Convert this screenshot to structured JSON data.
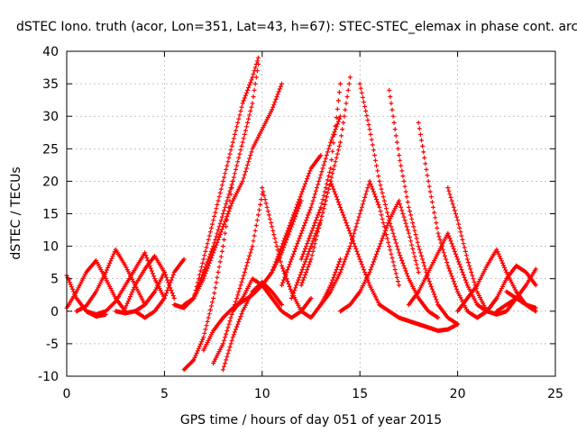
{
  "chart_data": {
    "type": "scatter",
    "title": "dSTEC Iono. truth (acor, Lon=351, Lat=43, h=67): STEC-STEC_elemax in phase cont. arc",
    "xlabel": "GPS time / hours of day 051 of year 2015",
    "ylabel": "dSTEC  / TECUs",
    "xlim": [
      0,
      25
    ],
    "ylim": [
      -10,
      40
    ],
    "xticks": [
      0,
      5,
      10,
      15,
      20,
      25
    ],
    "yticks": [
      -10,
      -5,
      0,
      5,
      10,
      15,
      20,
      25,
      30,
      35,
      40
    ],
    "grid": true,
    "legend": "none",
    "marker": "+",
    "color": "#ff0000",
    "series": [
      {
        "x": [
          0.0,
          0.5,
          1.0,
          1.5,
          2.0
        ],
        "y": [
          5.5,
          2,
          0,
          -0.8,
          -0.5
        ]
      },
      {
        "x": [
          0.0,
          0.5,
          1.0,
          1.5,
          2.0,
          2.5,
          3.0
        ],
        "y": [
          0.5,
          3,
          6,
          7.8,
          5,
          2,
          0
        ]
      },
      {
        "x": [
          0.5,
          1.0,
          1.5,
          2.0,
          2.5,
          3.0,
          3.5,
          4.0
        ],
        "y": [
          0,
          0.8,
          3,
          6,
          9.5,
          7,
          4,
          1
        ]
      },
      {
        "x": [
          1.0,
          1.5,
          2.0,
          2.5,
          3.0,
          3.5,
          4.0,
          4.5,
          5.0
        ],
        "y": [
          0,
          -0.5,
          0,
          1.5,
          4,
          6.5,
          9,
          5,
          2
        ]
      },
      {
        "x": [
          3.0,
          3.5,
          4.0,
          4.5,
          5.0,
          5.5
        ],
        "y": [
          0.5,
          4,
          6.5,
          8.5,
          6,
          2
        ]
      },
      {
        "x": [
          2.5,
          3.0,
          3.5,
          4.0,
          4.5,
          5.0
        ],
        "y": [
          0,
          -0.3,
          0,
          1,
          3,
          6
        ]
      },
      {
        "x": [
          3.5,
          4.0,
          4.5,
          5.0,
          5.5,
          6.0
        ],
        "y": [
          0,
          -1,
          0,
          2,
          6,
          8
        ]
      },
      {
        "x": [
          5.5,
          6.0,
          6.5,
          7.0,
          7.5,
          8.0,
          8.5,
          9.0,
          9.5,
          9.8
        ],
        "y": [
          1,
          0.5,
          2,
          8,
          14,
          20,
          26,
          32,
          36,
          39
        ]
      },
      {
        "x": [
          6.0,
          6.5,
          7.0,
          7.5,
          8.0,
          8.5,
          9.0,
          9.5,
          10.0,
          10.5,
          11.0
        ],
        "y": [
          1,
          2,
          5,
          9,
          13,
          17,
          20,
          25,
          28,
          31,
          35
        ]
      },
      {
        "x": [
          6.5,
          7.0,
          7.5,
          8.0,
          8.5,
          9.0,
          9.5,
          9.8
        ],
        "y": [
          2,
          6,
          10,
          15,
          20,
          26,
          32,
          38
        ]
      },
      {
        "x": [
          6.0,
          6.5,
          7.0,
          7.5,
          8.0,
          8.5
        ],
        "y": [
          -9,
          -7.5,
          -4,
          2,
          10,
          20
        ]
      },
      {
        "x": [
          7.5,
          8.0,
          8.5,
          9.0,
          9.5,
          10.0
        ],
        "y": [
          -8,
          -5,
          0,
          5,
          10,
          18
        ]
      },
      {
        "x": [
          7.0,
          7.5,
          8.0,
          8.5,
          9.0,
          9.5,
          10.0,
          10.5,
          11.0,
          11.5,
          12.0
        ],
        "y": [
          -6,
          -3,
          -1,
          0.5,
          1.5,
          2.5,
          4,
          6,
          9,
          13,
          17
        ]
      },
      {
        "x": [
          8.0,
          8.5,
          9.0,
          9.5,
          10.0,
          10.5,
          11.0
        ],
        "y": [
          -9,
          -4,
          0,
          3,
          4.5,
          3,
          1
        ]
      },
      {
        "x": [
          8.5,
          9.0,
          9.5,
          10.0,
          10.5,
          11.0,
          11.5,
          12.0,
          12.5
        ],
        "y": [
          0,
          2,
          5,
          4,
          2,
          0,
          -1,
          0,
          2
        ]
      },
      {
        "x": [
          10.0,
          10.5,
          11.0,
          11.5,
          12.0,
          12.5,
          13.0,
          13.5,
          14.0
        ],
        "y": [
          19,
          13,
          7,
          3,
          0,
          -1,
          1,
          4,
          8
        ]
      },
      {
        "x": [
          10.5,
          11.0,
          11.5,
          12.0,
          12.5,
          13.0
        ],
        "y": [
          6,
          10,
          14,
          18,
          22,
          24
        ]
      },
      {
        "x": [
          11.0,
          11.5,
          12.0,
          12.5,
          13.0,
          13.5,
          14.0
        ],
        "y": [
          4,
          8,
          12,
          16,
          21,
          26,
          30
        ]
      },
      {
        "x": [
          11.5,
          12.0,
          12.5,
          13.0,
          13.5,
          14.0,
          14.5
        ],
        "y": [
          2,
          6,
          10,
          14,
          20,
          26,
          36
        ]
      },
      {
        "x": [
          12.0,
          12.5,
          13.0,
          13.5,
          14.0,
          14.5,
          15.0,
          15.5,
          16.0
        ],
        "y": [
          4,
          8,
          14,
          20,
          16,
          12,
          8,
          4,
          1
        ]
      },
      {
        "x": [
          12.0,
          12.5,
          13.0,
          13.5,
          14.0
        ],
        "y": [
          8,
          12,
          16,
          22,
          35
        ]
      },
      {
        "x": [
          13.0,
          13.5,
          14.0,
          14.5,
          15.0,
          15.5,
          16.0,
          16.5,
          17.0
        ],
        "y": [
          1,
          3,
          6,
          10,
          15,
          20,
          16,
          10,
          4
        ]
      },
      {
        "x": [
          14.0,
          14.5,
          15.0,
          15.5,
          16.0,
          16.5,
          17.0,
          17.5,
          18.0
        ],
        "y": [
          0,
          1,
          3,
          6,
          10,
          14,
          17,
          12,
          6
        ]
      },
      {
        "x": [
          15.0,
          15.5,
          16.0,
          16.5,
          17.0,
          17.5,
          18.0,
          18.5,
          19.0
        ],
        "y": [
          35,
          28,
          20,
          14,
          9,
          5,
          2,
          0,
          -1
        ]
      },
      {
        "x": [
          16.5,
          17.0,
          17.5,
          18.0,
          18.5,
          19.0,
          19.5,
          20.0
        ],
        "y": [
          34,
          24,
          16,
          10,
          5,
          1,
          -1,
          -2
        ]
      },
      {
        "x": [
          18.0,
          18.5,
          19.0,
          19.5,
          20.0,
          20.5,
          21.0,
          21.5,
          22.0
        ],
        "y": [
          29,
          20,
          12,
          7,
          3,
          0,
          -1,
          0,
          2
        ]
      },
      {
        "x": [
          19.5,
          20.0,
          20.5,
          21.0,
          21.5,
          22.0,
          22.5,
          23.0
        ],
        "y": [
          19,
          14,
          8,
          3,
          0,
          -0.5,
          0,
          2
        ]
      },
      {
        "x": [
          16.0,
          16.5,
          17.0,
          17.5,
          18.0,
          18.5,
          19.0,
          19.5,
          20.0
        ],
        "y": [
          1,
          0,
          -1,
          -1.5,
          -2,
          -2.5,
          -3,
          -2.8,
          -2
        ]
      },
      {
        "x": [
          17.5,
          18.0,
          18.5,
          19.0,
          19.5,
          20.0,
          20.5,
          21.0,
          21.5
        ],
        "y": [
          1,
          3,
          6,
          9,
          12,
          8,
          4,
          1,
          0
        ]
      },
      {
        "x": [
          20.0,
          20.5,
          21.0,
          21.5,
          22.0,
          22.5,
          23.0,
          23.5,
          24.0
        ],
        "y": [
          0,
          2,
          4,
          7,
          9.5,
          6,
          3,
          1,
          0
        ]
      },
      {
        "x": [
          21.0,
          21.5,
          22.0,
          22.5,
          23.0,
          23.5,
          24.0
        ],
        "y": [
          -1,
          0,
          2,
          5,
          7,
          6,
          4
        ]
      },
      {
        "x": [
          22.0,
          22.5,
          23.0,
          23.5,
          24.0
        ],
        "y": [
          0,
          1,
          2,
          4,
          6.5
        ]
      },
      {
        "x": [
          22.5,
          23.0,
          23.5,
          24.0
        ],
        "y": [
          3,
          2,
          1,
          0.5
        ]
      }
    ]
  }
}
